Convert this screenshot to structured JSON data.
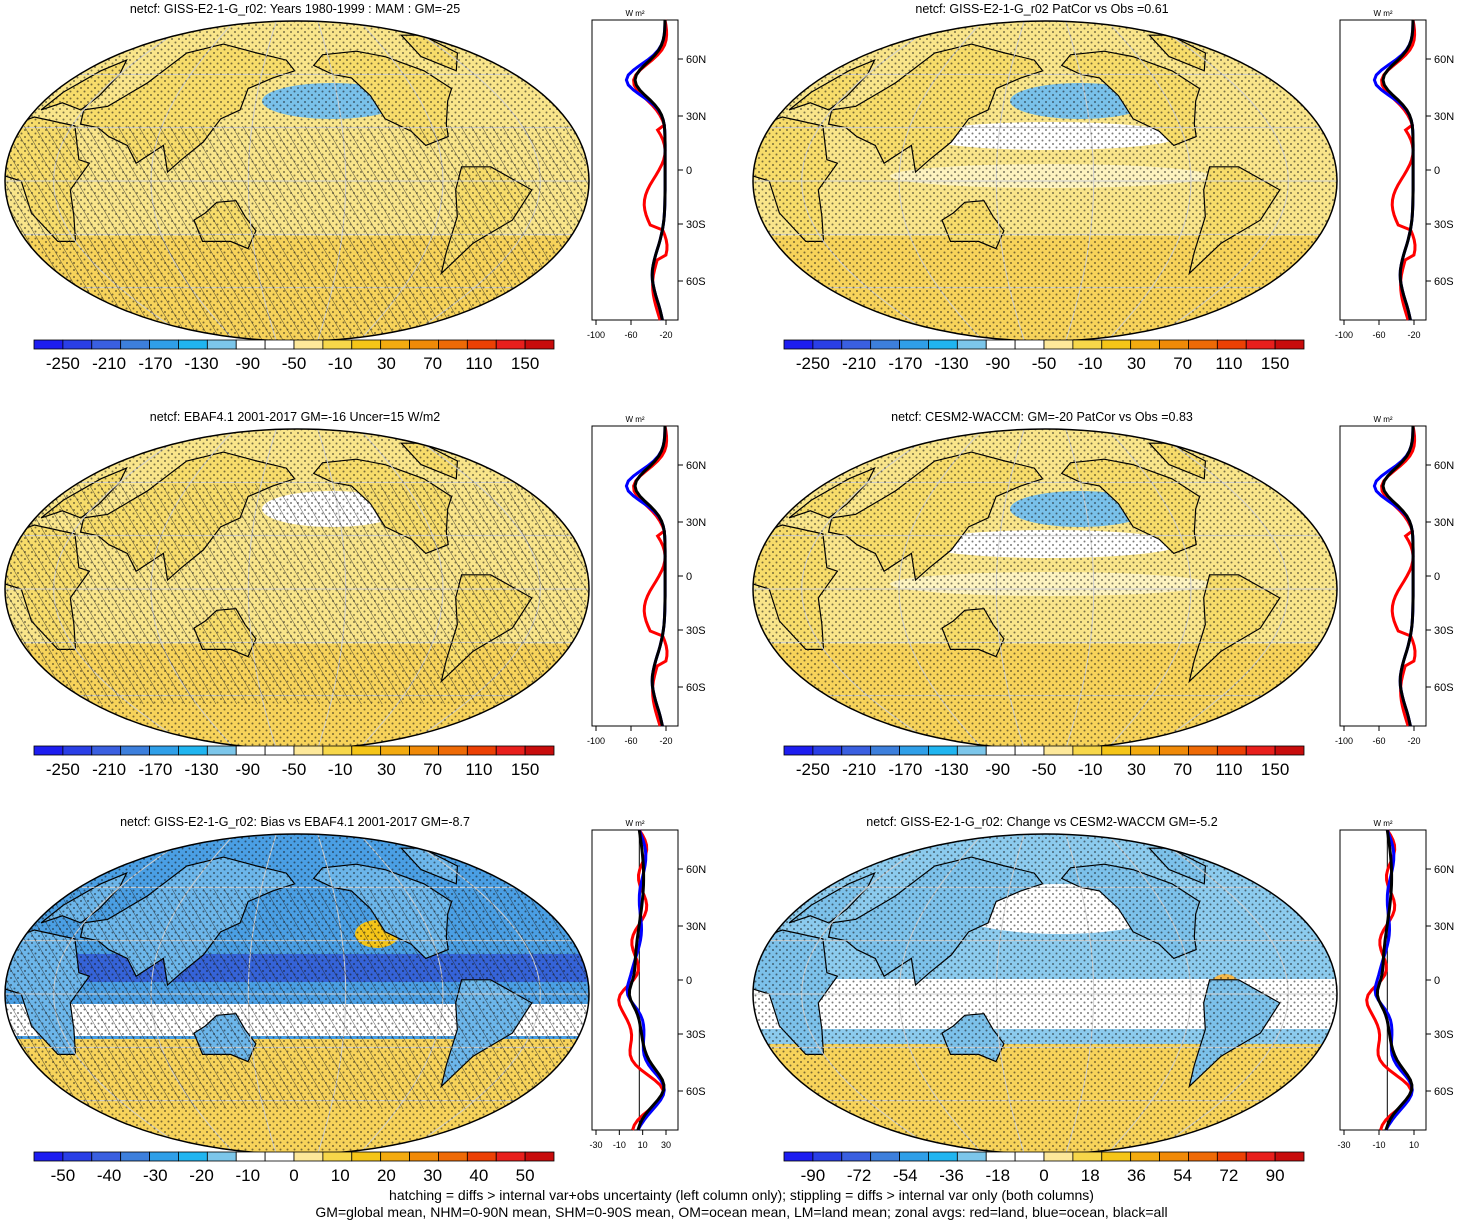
{
  "colors": {
    "cbar": [
      "#1d1df0",
      "#2a3fe6",
      "#3a5fe0",
      "#3d7fdc",
      "#2f9fe8",
      "#20b5f0",
      "#7cc6ea",
      "#ffffff",
      "#ffffff",
      "#fde89a",
      "#f7d74a",
      "#f5c518",
      "#f3ab10",
      "#f08a08",
      "#ee6a06",
      "#ec4004",
      "#e81f1c",
      "#c80c0c"
    ],
    "ocean_warm": "#f9e58a",
    "land_warm": "#f7dc6a",
    "cool": "#79c1ea",
    "deep_cool": "#3e6fdb",
    "zonal_land": "#ff0000",
    "zonal_ocean": "#0000ff",
    "zonal_all": "#000000"
  },
  "panels": [
    {
      "id": "p1",
      "title": "netcf: GISS-E2-1-G_r02: Years 1980-1999 : MAM : GM=-25",
      "style": "warm",
      "cbar_labels": [
        "-250",
        "-210",
        "-170",
        "-130",
        "-90",
        "-50",
        "-10",
        "30",
        "70",
        "110",
        "150"
      ],
      "zonal_unit": "W m²",
      "zonal_xticks": [
        "-100",
        "-60",
        "-20"
      ],
      "zonal_yticks": [
        "60N",
        "30N",
        "0",
        "30S",
        "60S"
      ]
    },
    {
      "id": "p2",
      "title": "netcf: GISS-E2-1-G_r02 PatCor vs Obs =0.61",
      "style": "warm",
      "cbar_labels": [
        "-250",
        "-210",
        "-170",
        "-130",
        "-90",
        "-50",
        "-10",
        "30",
        "70",
        "110",
        "150"
      ],
      "zonal_unit": "W m²",
      "zonal_xticks": [
        "-100",
        "-60",
        "-20"
      ],
      "zonal_yticks": [
        "60N",
        "30N",
        "0",
        "30S",
        "60S"
      ]
    },
    {
      "id": "p3",
      "title": "netcf: EBAF4.1 2001-2017 GM=-16 Uncer=15 W/m2",
      "style": "warm",
      "cbar_labels": [
        "-250",
        "-210",
        "-170",
        "-130",
        "-90",
        "-50",
        "-10",
        "30",
        "70",
        "110",
        "150"
      ],
      "zonal_unit": "W m²",
      "zonal_xticks": [
        "-100",
        "-60",
        "-20"
      ],
      "zonal_yticks": [
        "60N",
        "30N",
        "0",
        "30S",
        "60S"
      ]
    },
    {
      "id": "p4",
      "title": "netcf: CESM2-WACCM: GM=-20 PatCor vs Obs =0.83",
      "style": "warm",
      "cbar_labels": [
        "-250",
        "-210",
        "-170",
        "-130",
        "-90",
        "-50",
        "-10",
        "30",
        "70",
        "110",
        "150"
      ],
      "zonal_unit": "W m²",
      "zonal_xticks": [
        "-100",
        "-60",
        "-20"
      ],
      "zonal_yticks": [
        "60N",
        "30N",
        "0",
        "30S",
        "60S"
      ]
    },
    {
      "id": "p5",
      "title": "netcf: GISS-E2-1-G_r02: Bias vs EBAF4.1 2001-2017 GM=-8.7",
      "style": "bias",
      "cbar_labels": [
        "-50",
        "-40",
        "-30",
        "-20",
        "-10",
        "0",
        "10",
        "20",
        "30",
        "40",
        "50"
      ],
      "zonal_unit": "W m²",
      "zonal_xticks": [
        "-30",
        "-10",
        "10",
        "30"
      ],
      "zonal_yticks": [
        "60N",
        "30N",
        "0",
        "30S",
        "60S"
      ]
    },
    {
      "id": "p6",
      "title": "netcf: GISS-E2-1-G_r02: Change vs CESM2-WACCM GM=-5.2",
      "style": "change",
      "cbar_labels": [
        "-90",
        "-72",
        "-54",
        "-36",
        "-18",
        "0",
        "18",
        "36",
        "54",
        "72",
        "90"
      ],
      "zonal_unit": "W m²",
      "zonal_xticks": [
        "-30",
        "-10",
        "10"
      ],
      "zonal_yticks": [
        "60N",
        "30N",
        "0",
        "30S",
        "60S"
      ]
    }
  ],
  "footer": {
    "line1": "hatching = diffs > internal var+obs uncertainty (left column only); stippling = diffs > internal var only (both columns)",
    "line2": "GM=global mean, NHM=0-90N mean, SHM=0-90S mean, OM=ocean mean, LM=land mean; zonal avgs: red=land, blue=ocean, black=all"
  }
}
